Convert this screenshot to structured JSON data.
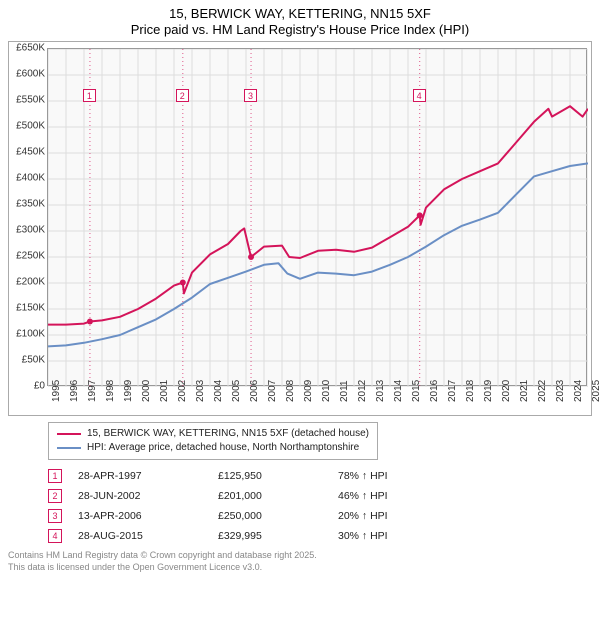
{
  "title_line1": "15, BERWICK WAY, KETTERING, NN15 5XF",
  "title_line2": "Price paid vs. HM Land Registry's House Price Index (HPI)",
  "chart": {
    "type": "line",
    "background_color": "#f9f9f9",
    "grid_color": "#dddddd",
    "border_color": "#999999",
    "x": {
      "min": 1995,
      "max": 2025,
      "tick_step": 1,
      "label_fontsize": 10,
      "label_rotation_deg": -90
    },
    "y": {
      "min": 0,
      "max": 650000,
      "tick_step": 50000,
      "tick_labels": [
        "£0",
        "£50K",
        "£100K",
        "£150K",
        "£200K",
        "£250K",
        "£300K",
        "£350K",
        "£400K",
        "£450K",
        "£500K",
        "£550K",
        "£600K",
        "£650K"
      ],
      "label_fontsize": 10
    },
    "series_property": {
      "label": "15, BERWICK WAY, KETTERING, NN15 5XF (detached house)",
      "color": "#d4145a",
      "line_width": 2,
      "data": [
        [
          1995,
          120000
        ],
        [
          1996,
          120000
        ],
        [
          1997,
          122000
        ],
        [
          1997.33,
          125950
        ],
        [
          1998,
          128000
        ],
        [
          1999,
          135000
        ],
        [
          2000,
          150000
        ],
        [
          2001,
          170000
        ],
        [
          2002,
          195000
        ],
        [
          2002.49,
          201000
        ],
        [
          2002.55,
          180000
        ],
        [
          2003,
          220000
        ],
        [
          2004,
          255000
        ],
        [
          2005,
          275000
        ],
        [
          2005.7,
          300000
        ],
        [
          2005.9,
          305000
        ],
        [
          2006.28,
          250000
        ],
        [
          2007,
          270000
        ],
        [
          2008,
          272000
        ],
        [
          2008.4,
          250000
        ],
        [
          2009,
          248000
        ],
        [
          2010,
          262000
        ],
        [
          2011,
          264000
        ],
        [
          2012,
          260000
        ],
        [
          2013,
          268000
        ],
        [
          2014,
          288000
        ],
        [
          2015,
          308000
        ],
        [
          2015.65,
          329995
        ],
        [
          2015.7,
          312000
        ],
        [
          2016,
          345000
        ],
        [
          2017,
          380000
        ],
        [
          2018,
          400000
        ],
        [
          2019,
          415000
        ],
        [
          2020,
          430000
        ],
        [
          2021,
          470000
        ],
        [
          2022,
          510000
        ],
        [
          2022.8,
          535000
        ],
        [
          2023,
          520000
        ],
        [
          2024,
          540000
        ],
        [
          2024.7,
          520000
        ],
        [
          2025,
          535000
        ]
      ]
    },
    "series_hpi": {
      "label": "HPI: Average price, detached house, North Northamptonshire",
      "color": "#6a8fc5",
      "line_width": 2,
      "data": [
        [
          1995,
          78000
        ],
        [
          1996,
          80000
        ],
        [
          1997,
          85000
        ],
        [
          1998,
          92000
        ],
        [
          1999,
          100000
        ],
        [
          2000,
          115000
        ],
        [
          2001,
          130000
        ],
        [
          2002,
          150000
        ],
        [
          2003,
          172000
        ],
        [
          2004,
          198000
        ],
        [
          2005,
          210000
        ],
        [
          2006,
          222000
        ],
        [
          2007,
          235000
        ],
        [
          2007.8,
          238000
        ],
        [
          2008.3,
          218000
        ],
        [
          2009,
          208000
        ],
        [
          2010,
          220000
        ],
        [
          2011,
          218000
        ],
        [
          2012,
          215000
        ],
        [
          2013,
          222000
        ],
        [
          2014,
          235000
        ],
        [
          2015,
          250000
        ],
        [
          2016,
          270000
        ],
        [
          2017,
          292000
        ],
        [
          2018,
          310000
        ],
        [
          2019,
          322000
        ],
        [
          2020,
          335000
        ],
        [
          2021,
          370000
        ],
        [
          2022,
          405000
        ],
        [
          2023,
          415000
        ],
        [
          2024,
          425000
        ],
        [
          2025,
          430000
        ]
      ]
    },
    "sale_markers": [
      {
        "index": "1",
        "x": 1997.33,
        "y_box": 560000
      },
      {
        "index": "2",
        "x": 2002.49,
        "y_box": 560000
      },
      {
        "index": "3",
        "x": 2006.28,
        "y_box": 560000
      },
      {
        "index": "4",
        "x": 2015.65,
        "y_box": 560000
      }
    ],
    "marker_box_color": "#d4145a",
    "marker_line_color": "#d4145a",
    "marker_line_dash": "1 3",
    "sale_point_radius": 3
  },
  "legend": {
    "items": [
      {
        "series": "property"
      },
      {
        "series": "hpi"
      }
    ]
  },
  "sales_table": {
    "arrow": "↑",
    "suffix": "HPI",
    "rows": [
      {
        "idx": "1",
        "date": "28-APR-1997",
        "price": "£125,950",
        "delta": "78%"
      },
      {
        "idx": "2",
        "date": "28-JUN-2002",
        "price": "£201,000",
        "delta": "46%"
      },
      {
        "idx": "3",
        "date": "13-APR-2006",
        "price": "£250,000",
        "delta": "20%"
      },
      {
        "idx": "4",
        "date": "28-AUG-2015",
        "price": "£329,995",
        "delta": "30%"
      }
    ]
  },
  "attribution_line1": "Contains HM Land Registry data © Crown copyright and database right 2025.",
  "attribution_line2": "This data is licensed under the Open Government Licence v3.0."
}
